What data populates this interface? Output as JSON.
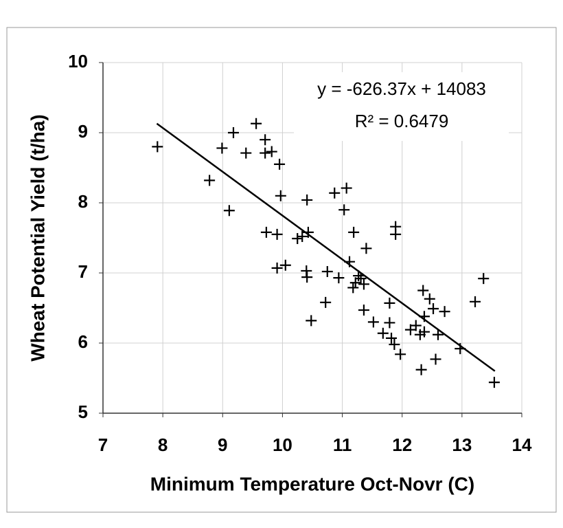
{
  "chart_data": {
    "type": "scatter",
    "x_label": "Minimum Temperature Oct-Novr (C)",
    "y_label": "Wheat Potential Yield (t/ha)",
    "annotation": [
      "y = -626.37x + 14083",
      "R² = 0.6479"
    ],
    "xlim": [
      7,
      14
    ],
    "xticks": [
      7,
      8,
      9,
      10,
      11,
      12,
      13,
      14
    ],
    "ylim": [
      5,
      10
    ],
    "yticks": [
      5,
      6,
      7,
      8,
      9,
      10
    ],
    "grid": true,
    "color": "#000000",
    "trendline": {
      "x": [
        7.9,
        13.55
      ],
      "y": [
        9.13,
        5.6
      ]
    },
    "x": [
      7.91,
      8.78,
      8.99,
      9.18,
      9.11,
      9.39,
      9.56,
      9.71,
      9.71,
      9.82,
      9.95,
      9.97,
      9.73,
      9.91,
      9.91,
      10.05,
      10.25,
      10.33,
      10.43,
      10.41,
      10.4,
      10.41,
      10.48,
      10.72,
      10.75,
      10.87,
      10.94,
      11.03,
      11.07,
      11.12,
      11.19,
      11.18,
      11.22,
      11.27,
      11.31,
      11.36,
      11.4,
      11.36,
      11.52,
      11.68,
      11.79,
      11.79,
      11.82,
      11.87,
      11.89,
      11.89,
      11.97,
      12.14,
      12.23,
      12.3,
      12.35,
      12.37,
      12.32,
      12.37,
      12.46,
      12.52,
      12.56,
      12.6,
      12.71,
      12.97,
      13.22,
      13.36,
      13.54
    ],
    "values": [
      8.8,
      8.32,
      8.78,
      9.0,
      7.89,
      8.71,
      9.13,
      8.9,
      8.71,
      8.73,
      8.55,
      8.1,
      7.58,
      7.55,
      7.07,
      7.11,
      7.49,
      7.52,
      7.58,
      8.04,
      7.03,
      6.94,
      6.32,
      6.58,
      7.02,
      8.14,
      6.93,
      7.9,
      8.21,
      7.16,
      7.58,
      6.79,
      6.86,
      6.96,
      6.92,
      6.84,
      7.35,
      6.47,
      6.3,
      6.14,
      6.57,
      6.29,
      6.07,
      5.98,
      7.66,
      7.55,
      5.84,
      6.19,
      6.25,
      6.12,
      6.75,
      6.38,
      5.62,
      6.16,
      6.63,
      6.49,
      5.77,
      6.12,
      6.45,
      5.92,
      6.59,
      6.92,
      5.44
    ]
  }
}
